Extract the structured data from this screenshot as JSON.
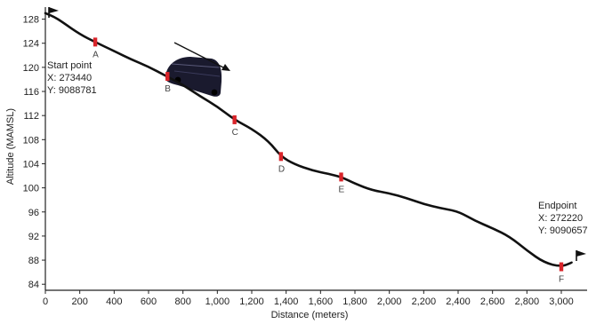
{
  "chart_data": {
    "type": "line",
    "title": "",
    "xlabel": "Distance (meters)",
    "ylabel": "Altitude (MAMSL)",
    "xlim": [
      0,
      3150
    ],
    "ylim": [
      83,
      130
    ],
    "x_ticks": [
      "0",
      "200",
      "400",
      "600",
      "800",
      "1,000",
      "1,200",
      "1,400",
      "1,600",
      "1,800",
      "2,000",
      "2,200",
      "2,400",
      "2,600",
      "2,800",
      "3,000"
    ],
    "x_tick_values": [
      0,
      200,
      400,
      600,
      800,
      1000,
      1200,
      1400,
      1600,
      1800,
      2000,
      2200,
      2400,
      2600,
      2800,
      3000
    ],
    "y_ticks": [
      "84",
      "88",
      "92",
      "96",
      "100",
      "104",
      "108",
      "112",
      "116",
      "120",
      "124",
      "128"
    ],
    "y_tick_values": [
      84,
      88,
      92,
      96,
      100,
      104,
      108,
      112,
      116,
      120,
      124,
      128
    ],
    "grid": false,
    "series": [
      {
        "x": [
          0,
          50,
          100,
          200,
          290,
          400,
          500,
          600,
          700,
          800,
          900,
          1000,
          1100,
          1200,
          1300,
          1370,
          1450,
          1550,
          1650,
          1720,
          1800,
          1900,
          2000,
          2100,
          2200,
          2300,
          2400,
          2500,
          2600,
          2700,
          2800,
          2900,
          3000,
          3060
        ],
        "y": [
          129,
          128.4,
          127.5,
          125.5,
          124.2,
          122.7,
          121.3,
          120.1,
          118.6,
          117.1,
          115.2,
          113.5,
          111.3,
          109.8,
          107.7,
          105.2,
          103.9,
          102.9,
          102.3,
          101.8,
          100.7,
          99.6,
          99.1,
          98.3,
          97.3,
          96.6,
          96.1,
          94.5,
          93.3,
          91.9,
          89.6,
          87.6,
          86.9,
          87.6
        ]
      }
    ],
    "points": [
      {
        "label": "A",
        "x": 290,
        "y": 124.2
      },
      {
        "label": "B",
        "x": 710,
        "y": 118.5
      },
      {
        "label": "C",
        "x": 1100,
        "y": 111.3
      },
      {
        "label": "D",
        "x": 1370,
        "y": 105.2
      },
      {
        "label": "E",
        "x": 1720,
        "y": 101.8
      },
      {
        "label": "F",
        "x": 3000,
        "y": 86.9
      }
    ],
    "annotations": [
      {
        "lines": [
          "Start point",
          "X: 273440",
          "Y: 9088781"
        ]
      },
      {
        "lines": [
          "Endpoint",
          "X: 272220",
          "Y: 9090657"
        ]
      }
    ],
    "marker_color": "#d9242a",
    "line_color": "#111111"
  }
}
